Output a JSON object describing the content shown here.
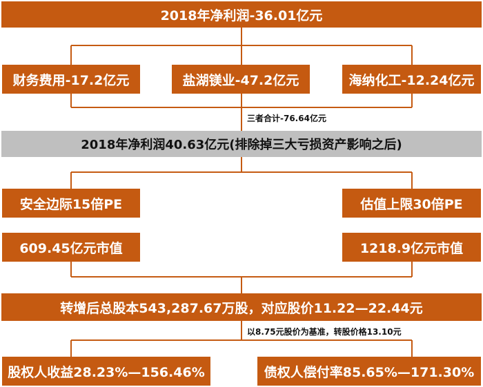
{
  "top": {
    "label": "2018年净利润-36.01亿元"
  },
  "losses": [
    {
      "label": "财务费用-17.2亿元"
    },
    {
      "label": "盐湖镁业-47.2亿元"
    },
    {
      "label": "海纳化工-12.24亿元"
    }
  ],
  "total_note": "三者合计-76.64亿元",
  "adjusted": {
    "label": "2018年净利润40.63亿元(排除掉三大亏损资产影响之后)"
  },
  "left_col": {
    "pe": "安全边际15倍PE",
    "market_cap": "609.45亿元市值"
  },
  "right_col": {
    "pe": "估值上限30倍PE",
    "market_cap": "1218.9亿元市值"
  },
  "shares": {
    "label": "转增后总股本543,287.67万股，对应股价11.22—22.44元"
  },
  "base_note": "以8.75元股价为基准，转股价格13.10元",
  "results": [
    {
      "label": "股权人收益28.23%—156.46%"
    },
    {
      "label": "债权人偿付率85.65%—171.30%"
    }
  ],
  "colors": {
    "accent": "#c55a11",
    "gray": "#bfbfbf",
    "line": "#c55a11"
  }
}
